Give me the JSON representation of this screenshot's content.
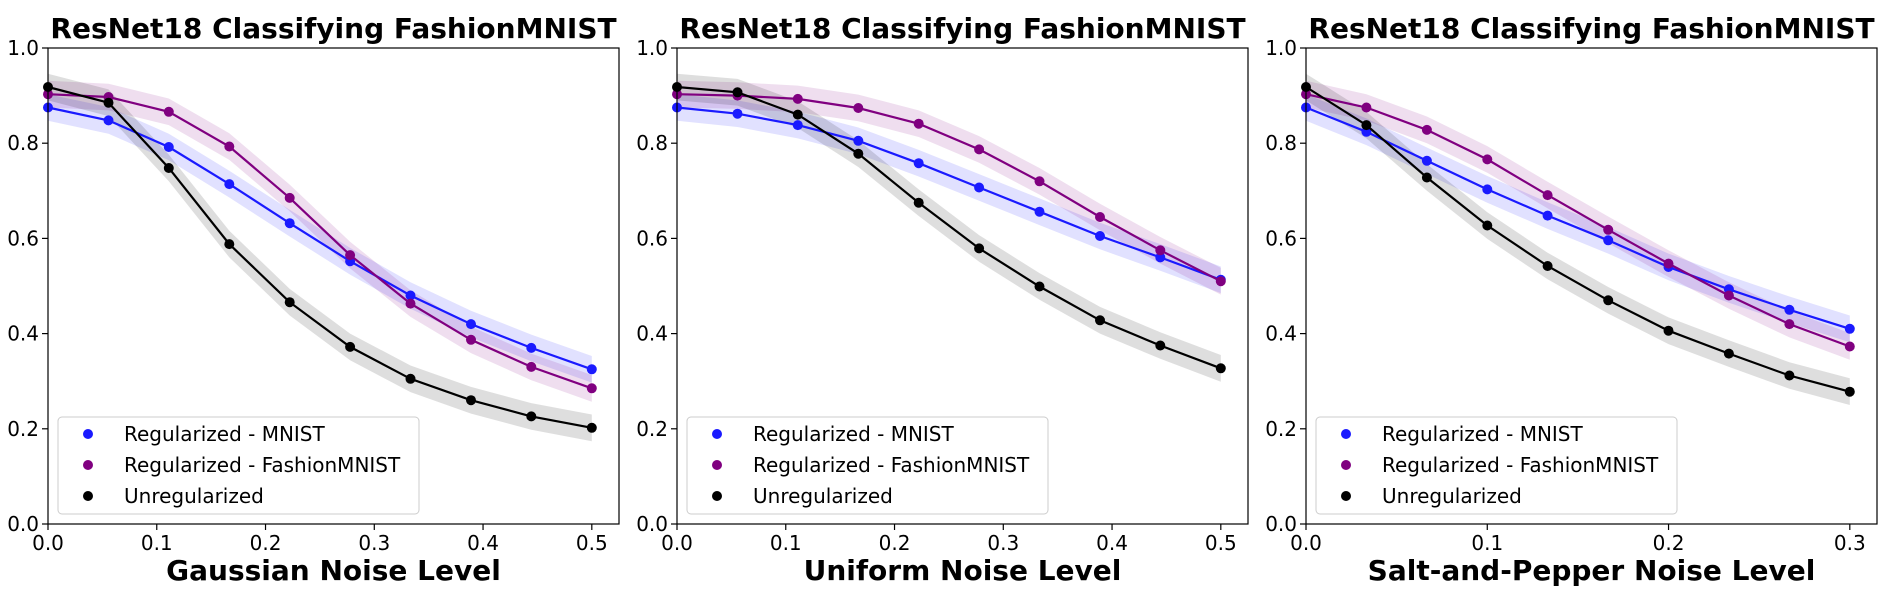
{
  "chart_data": [
    {
      "type": "line",
      "title": "ResNet18 Classifying FashionMNIST",
      "xlabel": "Gaussian Noise Level",
      "ylabel": "",
      "xlim": [
        0,
        0.525
      ],
      "ylim": [
        0,
        1.0
      ],
      "xticks": [
        "0.0",
        "0.1",
        "0.2",
        "0.3",
        "0.4",
        "0.5"
      ],
      "yticks": [
        "0.0",
        "0.2",
        "0.4",
        "0.6",
        "0.8",
        "1.0"
      ],
      "legend_position": "lower-left",
      "grid": false,
      "x": [
        0.0,
        0.0556,
        0.1111,
        0.1667,
        0.2222,
        0.2778,
        0.3333,
        0.3889,
        0.4444,
        0.5
      ],
      "series": [
        {
          "name": "Regularized - MNIST",
          "color": "#1a1aff",
          "values": [
            0.875,
            0.848,
            0.792,
            0.714,
            0.632,
            0.552,
            0.48,
            0.42,
            0.37,
            0.325
          ]
        },
        {
          "name": "Regularized - FashionMNIST",
          "color": "#800080",
          "values": [
            0.903,
            0.897,
            0.866,
            0.793,
            0.685,
            0.565,
            0.463,
            0.387,
            0.33,
            0.285
          ]
        },
        {
          "name": "Unregularized",
          "color": "#000000",
          "values": [
            0.918,
            0.885,
            0.748,
            0.588,
            0.466,
            0.372,
            0.305,
            0.26,
            0.226,
            0.202
          ]
        }
      ]
    },
    {
      "type": "line",
      "title": "ResNet18 Classifying FashionMNIST",
      "xlabel": "Uniform Noise Level",
      "ylabel": "",
      "xlim": [
        0,
        0.525
      ],
      "ylim": [
        0,
        1.0
      ],
      "xticks": [
        "0.0",
        "0.1",
        "0.2",
        "0.3",
        "0.4",
        "0.5"
      ],
      "yticks": [
        "0.0",
        "0.2",
        "0.4",
        "0.6",
        "0.8",
        "1.0"
      ],
      "legend_position": "lower-left",
      "grid": false,
      "x": [
        0.0,
        0.0556,
        0.1111,
        0.1667,
        0.2222,
        0.2778,
        0.3333,
        0.3889,
        0.4444,
        0.5
      ],
      "series": [
        {
          "name": "Regularized - MNIST",
          "color": "#1a1aff",
          "values": [
            0.875,
            0.862,
            0.838,
            0.805,
            0.758,
            0.707,
            0.656,
            0.605,
            0.56,
            0.513
          ]
        },
        {
          "name": "Regularized - FashionMNIST",
          "color": "#800080",
          "values": [
            0.903,
            0.9,
            0.893,
            0.874,
            0.841,
            0.787,
            0.72,
            0.645,
            0.575,
            0.51
          ]
        },
        {
          "name": "Unregularized",
          "color": "#000000",
          "values": [
            0.918,
            0.907,
            0.86,
            0.778,
            0.675,
            0.579,
            0.499,
            0.428,
            0.375,
            0.327
          ]
        }
      ]
    },
    {
      "type": "line",
      "title": "ResNet18 Classifying FashionMNIST",
      "xlabel": "Salt-and-Pepper Noise Level",
      "ylabel": "",
      "xlim": [
        0,
        0.315
      ],
      "ylim": [
        0,
        1.0
      ],
      "xticks": [
        "0.0",
        "0.1",
        "0.2",
        "0.3"
      ],
      "yticks": [
        "0.0",
        "0.2",
        "0.4",
        "0.6",
        "0.8",
        "1.0"
      ],
      "legend_position": "lower-left",
      "grid": false,
      "x": [
        0.0,
        0.0333,
        0.0667,
        0.1,
        0.1333,
        0.1667,
        0.2,
        0.2333,
        0.2667,
        0.3
      ],
      "series": [
        {
          "name": "Regularized - MNIST",
          "color": "#1a1aff",
          "values": [
            0.875,
            0.824,
            0.763,
            0.703,
            0.648,
            0.596,
            0.54,
            0.493,
            0.45,
            0.41
          ]
        },
        {
          "name": "Regularized - FashionMNIST",
          "color": "#800080",
          "values": [
            0.903,
            0.875,
            0.828,
            0.766,
            0.691,
            0.618,
            0.547,
            0.48,
            0.42,
            0.373
          ]
        },
        {
          "name": "Unregularized",
          "color": "#000000",
          "values": [
            0.918,
            0.838,
            0.728,
            0.627,
            0.542,
            0.47,
            0.406,
            0.358,
            0.312,
            0.278
          ]
        }
      ]
    }
  ]
}
